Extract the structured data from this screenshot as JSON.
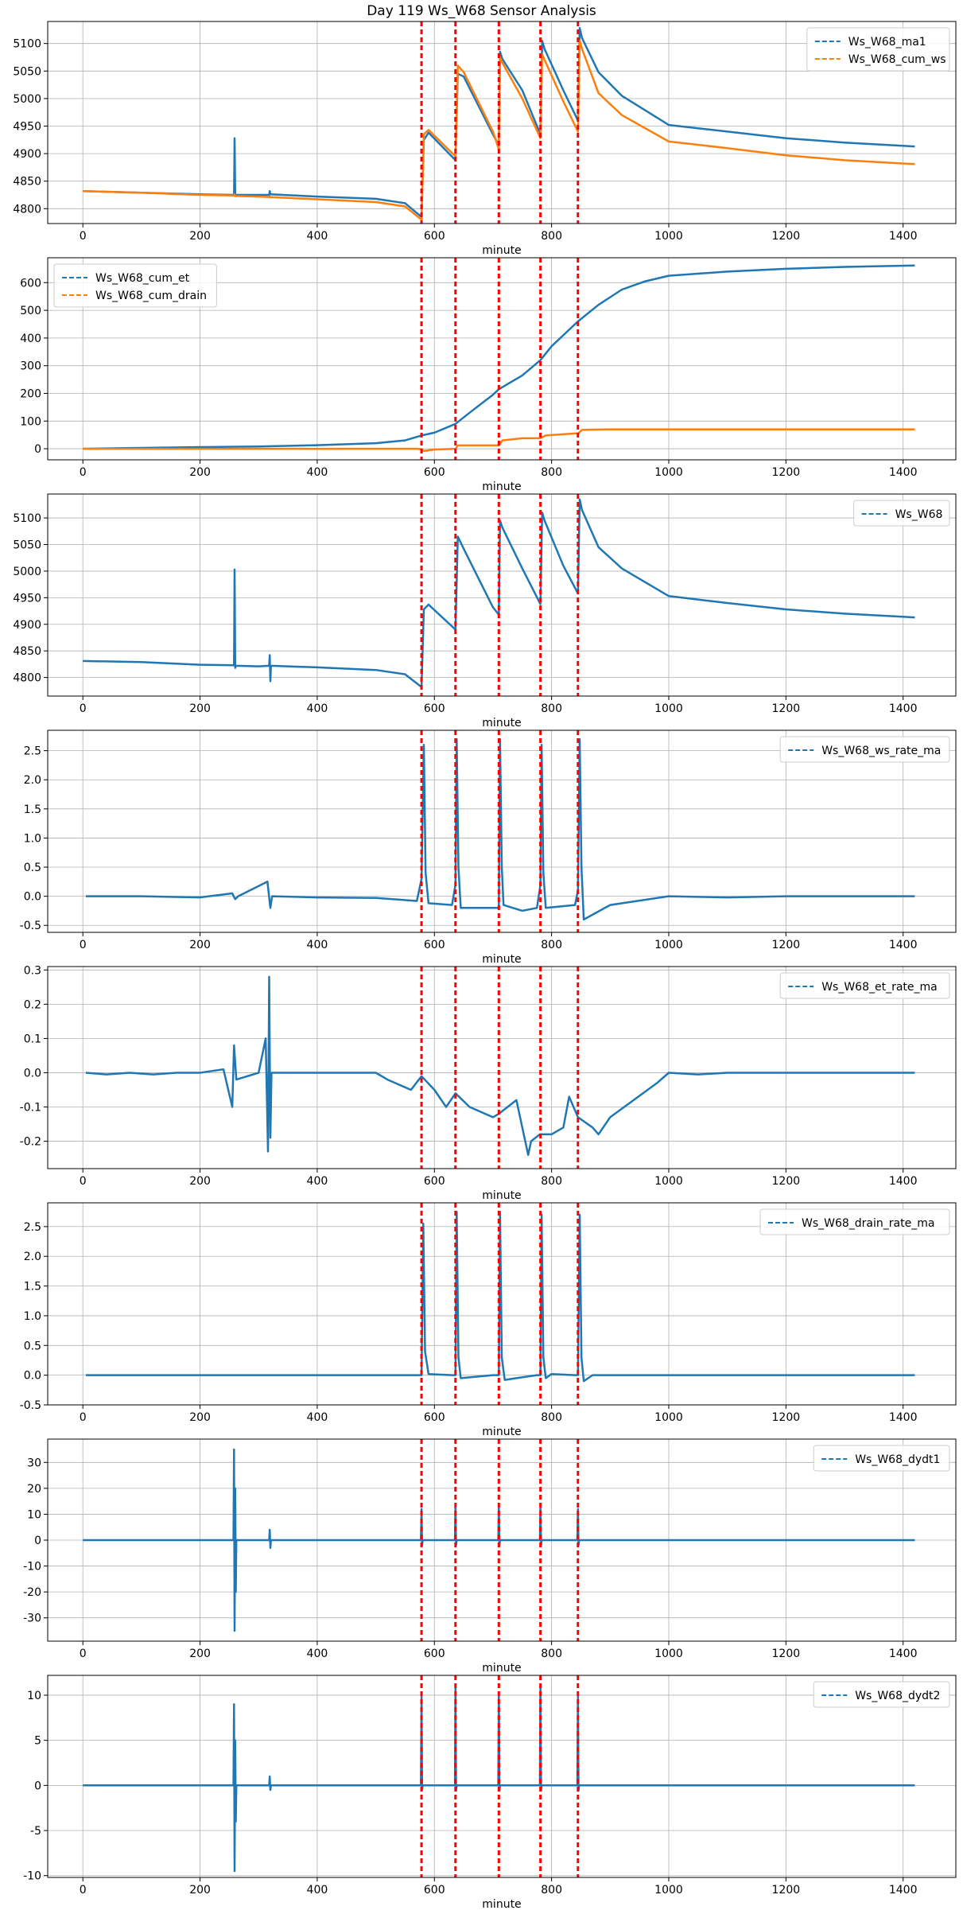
{
  "title": "Day 119 Ws_W68 Sensor Analysis",
  "colors": {
    "blue": "#1f77b4",
    "orange": "#ff7f0e",
    "event": "#ff0000",
    "grid": "#b0b0b0"
  },
  "event_lines": [
    578,
    636,
    710,
    781,
    845
  ],
  "chart_data": [
    {
      "type": "line",
      "title": "",
      "xlabel": "minute",
      "ylabel": "",
      "xlim": [
        -60,
        1490
      ],
      "ylim": [
        4773,
        5140
      ],
      "xticks": [
        0,
        200,
        400,
        600,
        800,
        1000,
        1200,
        1400
      ],
      "yticks": [
        4800,
        4850,
        4900,
        4950,
        5000,
        5050,
        5100
      ],
      "legend_position": "top-right",
      "grid": true,
      "series": [
        {
          "name": "Ws_W68_ma1",
          "color": "#1f77b4",
          "x": [
            0,
            100,
            200,
            258,
            259,
            260,
            261,
            300,
            318,
            319,
            320,
            400,
            500,
            550,
            578,
            582,
            590,
            636,
            640,
            650,
            700,
            710,
            712,
            716,
            750,
            781,
            784,
            788,
            820,
            845,
            848,
            852,
            880,
            920,
            1000,
            1100,
            1200,
            1300,
            1420
          ],
          "y": [
            4832,
            4829,
            4826,
            4825,
            4928,
            4823,
            4825,
            4825,
            4825,
            4832,
            4826,
            4822,
            4818,
            4810,
            4785,
            4925,
            4938,
            4888,
            5045,
            5040,
            4935,
            4915,
            5085,
            5072,
            5015,
            4935,
            5105,
            5090,
            5015,
            4960,
            5128,
            5110,
            5048,
            5005,
            4952,
            4940,
            4928,
            4920,
            4913
          ]
        },
        {
          "name": "Ws_W68_cum_ws",
          "color": "#ff7f0e",
          "x": [
            0,
            100,
            200,
            258,
            259,
            260,
            261,
            300,
            318,
            319,
            320,
            400,
            500,
            550,
            578,
            582,
            590,
            636,
            640,
            650,
            700,
            710,
            712,
            716,
            750,
            781,
            784,
            788,
            820,
            845,
            848,
            852,
            880,
            920,
            1000,
            1100,
            1200,
            1300,
            1420
          ],
          "y": [
            4832,
            4829,
            4825,
            4824,
            4826,
            4823,
            4823,
            4822,
            4821,
            4822,
            4821,
            4817,
            4812,
            4804,
            4780,
            4935,
            4943,
            4895,
            5060,
            5048,
            4940,
            4908,
            5075,
            5065,
            5000,
            4928,
            5080,
            5070,
            4995,
            4940,
            5105,
            5090,
            5010,
            4970,
            4922,
            4910,
            4897,
            4888,
            4881
          ]
        }
      ]
    },
    {
      "type": "line",
      "title": "",
      "xlabel": "minute",
      "ylabel": "",
      "xlim": [
        -60,
        1490
      ],
      "ylim": [
        -40,
        690
      ],
      "xticks": [
        0,
        200,
        400,
        600,
        800,
        1000,
        1200,
        1400
      ],
      "yticks": [
        0,
        100,
        200,
        300,
        400,
        500,
        600
      ],
      "legend_position": "top-left",
      "grid": true,
      "series": [
        {
          "name": "Ws_W68_cum_et",
          "color": "#1f77b4",
          "x": [
            0,
            100,
            200,
            300,
            400,
            500,
            550,
            578,
            600,
            636,
            660,
            700,
            710,
            750,
            781,
            800,
            845,
            880,
            920,
            960,
            1000,
            1100,
            1200,
            1300,
            1420
          ],
          "y": [
            0,
            3,
            6,
            8,
            13,
            20,
            30,
            48,
            58,
            90,
            130,
            195,
            215,
            265,
            320,
            370,
            460,
            520,
            575,
            605,
            625,
            640,
            650,
            657,
            662
          ]
        },
        {
          "name": "Ws_W68_cum_drain",
          "color": "#ff7f0e",
          "x": [
            0,
            100,
            200,
            300,
            400,
            500,
            570,
            578,
            582,
            600,
            636,
            640,
            700,
            710,
            716,
            750,
            781,
            790,
            840,
            845,
            852,
            900,
            1000,
            1200,
            1420
          ],
          "y": [
            0,
            0,
            0,
            0,
            0,
            0,
            0,
            -2,
            -8,
            -3,
            0,
            12,
            12,
            12,
            30,
            38,
            38,
            48,
            55,
            55,
            68,
            70,
            70,
            70,
            70
          ]
        }
      ]
    },
    {
      "type": "line",
      "title": "",
      "xlabel": "minute",
      "ylabel": "",
      "xlim": [
        -60,
        1490
      ],
      "ylim": [
        4765,
        5145
      ],
      "xticks": [
        0,
        200,
        400,
        600,
        800,
        1000,
        1200,
        1400
      ],
      "yticks": [
        4800,
        4850,
        4900,
        4950,
        5000,
        5050,
        5100
      ],
      "legend_position": "top-right",
      "grid": true,
      "series": [
        {
          "name": "Ws_W68",
          "color": "#1f77b4",
          "x": [
            0,
            100,
            200,
            258,
            259,
            260,
            261,
            300,
            318,
            319,
            320,
            321,
            400,
            500,
            550,
            578,
            582,
            590,
            636,
            640,
            650,
            700,
            710,
            712,
            716,
            750,
            781,
            784,
            788,
            820,
            845,
            848,
            852,
            880,
            920,
            1000,
            1100,
            1200,
            1300,
            1420
          ],
          "y": [
            4831,
            4829,
            4824,
            4823,
            5003,
            4818,
            4822,
            4821,
            4822,
            4842,
            4793,
            4822,
            4819,
            4814,
            4806,
            4782,
            4928,
            4937,
            4890,
            5065,
            5042,
            4932,
            4918,
            5095,
            5082,
            5005,
            4938,
            5110,
            5095,
            5010,
            4958,
            5135,
            5115,
            5045,
            5005,
            4953,
            4940,
            4928,
            4920,
            4913
          ]
        }
      ]
    },
    {
      "type": "line",
      "title": "",
      "xlabel": "minute",
      "ylabel": "",
      "xlim": [
        -60,
        1490
      ],
      "ylim": [
        -0.62,
        2.85
      ],
      "xticks": [
        0,
        200,
        400,
        600,
        800,
        1000,
        1200,
        1400
      ],
      "yticks": [
        -0.5,
        0.0,
        0.5,
        1.0,
        1.5,
        2.0,
        2.5
      ],
      "legend_position": "top-right",
      "grid": true,
      "series": [
        {
          "name": "Ws_W68_ws_rate_ma",
          "color": "#1f77b4",
          "x": [
            5,
            100,
            200,
            255,
            260,
            265,
            315,
            320,
            323,
            400,
            500,
            570,
            578,
            582,
            585,
            590,
            630,
            636,
            638,
            641,
            645,
            700,
            710,
            712,
            715,
            718,
            750,
            775,
            781,
            783,
            786,
            790,
            840,
            845,
            848,
            851,
            855,
            900,
            1000,
            1100,
            1200,
            1420
          ],
          "y": [
            0.0,
            0.0,
            -0.02,
            0.05,
            -0.05,
            0.0,
            0.25,
            -0.2,
            0.0,
            -0.02,
            -0.03,
            -0.08,
            0.3,
            2.6,
            0.4,
            -0.12,
            -0.15,
            0.2,
            2.7,
            0.5,
            -0.2,
            -0.2,
            -0.2,
            2.7,
            0.5,
            -0.15,
            -0.25,
            -0.2,
            0.2,
            2.6,
            0.4,
            -0.2,
            -0.15,
            0.1,
            2.7,
            0.5,
            -0.4,
            -0.15,
            0.0,
            -0.02,
            0.0,
            0.0
          ]
        }
      ]
    },
    {
      "type": "line",
      "title": "",
      "xlabel": "minute",
      "ylabel": "",
      "xlim": [
        -60,
        1490
      ],
      "ylim": [
        -0.28,
        0.31
      ],
      "xticks": [
        0,
        200,
        400,
        600,
        800,
        1000,
        1200,
        1400
      ],
      "yticks": [
        -0.2,
        -0.1,
        0.0,
        0.1,
        0.2,
        0.3
      ],
      "legend_position": "top-right",
      "grid": true,
      "series": [
        {
          "name": "Ws_W68_et_rate_ma",
          "color": "#1f77b4",
          "x": [
            5,
            40,
            80,
            120,
            160,
            200,
            240,
            255,
            258,
            262,
            300,
            312,
            316,
            318,
            320,
            322,
            330,
            400,
            500,
            520,
            560,
            578,
            600,
            620,
            636,
            660,
            700,
            710,
            740,
            760,
            765,
            780,
            800,
            820,
            830,
            845,
            870,
            880,
            900,
            940,
            980,
            1000,
            1050,
            1100,
            1200,
            1300,
            1420
          ],
          "y": [
            0.0,
            -0.005,
            0.0,
            -0.005,
            0.0,
            0.0,
            0.01,
            -0.1,
            0.08,
            -0.02,
            0.0,
            0.1,
            -0.23,
            0.28,
            -0.19,
            0.0,
            0.0,
            0.0,
            0.0,
            -0.02,
            -0.05,
            -0.01,
            -0.05,
            -0.1,
            -0.06,
            -0.1,
            -0.13,
            -0.12,
            -0.08,
            -0.24,
            -0.2,
            -0.18,
            -0.18,
            -0.16,
            -0.07,
            -0.13,
            -0.16,
            -0.18,
            -0.13,
            -0.08,
            -0.03,
            0.0,
            -0.005,
            0.0,
            0.0,
            0.0,
            0.0
          ]
        }
      ]
    },
    {
      "type": "line",
      "title": "",
      "xlabel": "minute",
      "ylabel": "",
      "xlim": [
        -60,
        1490
      ],
      "ylim": [
        -0.5,
        2.9
      ],
      "xticks": [
        0,
        200,
        400,
        600,
        800,
        1000,
        1200,
        1400
      ],
      "yticks": [
        -0.5,
        0.0,
        0.5,
        1.0,
        1.5,
        2.0,
        2.5
      ],
      "legend_position": "top-right",
      "grid": true,
      "series": [
        {
          "name": "Ws_W68_drain_rate_ma",
          "color": "#1f77b4",
          "x": [
            5,
            200,
            400,
            570,
            578,
            581,
            584,
            590,
            630,
            636,
            638,
            641,
            645,
            700,
            710,
            712,
            715,
            720,
            740,
            775,
            781,
            783,
            786,
            790,
            800,
            840,
            845,
            848,
            851,
            855,
            870,
            900,
            1000,
            1200,
            1420
          ],
          "y": [
            0.0,
            0.0,
            0.0,
            0.0,
            0.0,
            2.55,
            0.4,
            0.02,
            0.0,
            0.0,
            2.75,
            0.3,
            -0.05,
            0.0,
            0.0,
            2.75,
            0.3,
            -0.08,
            -0.05,
            0.0,
            0.0,
            2.7,
            0.3,
            -0.05,
            0.02,
            0.0,
            0.0,
            2.7,
            0.3,
            -0.1,
            0.0,
            0.0,
            0.0,
            0.0,
            0.0
          ]
        }
      ]
    },
    {
      "type": "line",
      "title": "",
      "xlabel": "minute",
      "ylabel": "",
      "xlim": [
        -60,
        1490
      ],
      "ylim": [
        -39,
        39
      ],
      "xticks": [
        0,
        200,
        400,
        600,
        800,
        1000,
        1200,
        1400
      ],
      "yticks": [
        -30,
        -20,
        -10,
        0,
        10,
        20,
        30
      ],
      "legend_position": "top-right",
      "grid": true,
      "series": [
        {
          "name": "Ws_W68_dydt1",
          "color": "#1f77b4",
          "x": [
            0,
            100,
            200,
            257,
            258,
            259,
            260,
            261,
            262,
            300,
            318,
            319,
            320,
            321,
            400,
            500,
            577,
            578,
            579,
            580,
            635,
            636,
            637,
            638,
            709,
            710,
            711,
            712,
            780,
            781,
            782,
            783,
            844,
            845,
            846,
            847,
            900,
            1000,
            1200,
            1420
          ],
          "y": [
            0,
            0,
            0,
            0,
            35,
            -35,
            20,
            -20,
            0,
            0,
            0,
            4,
            -3,
            0,
            0,
            0,
            0,
            12,
            -2,
            0,
            0,
            14,
            -2,
            0,
            0,
            13,
            -2,
            0,
            0,
            13,
            -2,
            0,
            0,
            12,
            -2,
            0,
            0,
            0,
            0,
            0
          ]
        }
      ]
    },
    {
      "type": "line",
      "title": "",
      "xlabel": "minute",
      "ylabel": "",
      "xlim": [
        -60,
        1490
      ],
      "ylim": [
        -10.2,
        12.2
      ],
      "xticks": [
        0,
        200,
        400,
        600,
        800,
        1000,
        1200,
        1400
      ],
      "yticks": [
        -10,
        -5,
        0,
        5,
        10
      ],
      "legend_position": "top-right",
      "grid": true,
      "series": [
        {
          "name": "Ws_W68_dydt2",
          "color": "#1f77b4",
          "x": [
            0,
            100,
            200,
            257,
            258,
            259,
            260,
            261,
            262,
            300,
            318,
            319,
            320,
            321,
            400,
            500,
            577,
            578,
            579,
            580,
            635,
            636,
            637,
            638,
            709,
            710,
            711,
            712,
            780,
            781,
            782,
            783,
            844,
            845,
            846,
            847,
            900,
            1000,
            1200,
            1420
          ],
          "y": [
            0,
            0,
            0,
            0,
            9,
            -9.5,
            5,
            -4,
            0,
            0,
            0,
            1,
            -0.5,
            0,
            0,
            0,
            0,
            10,
            -0.5,
            0,
            0,
            11,
            -0.6,
            0,
            0,
            10,
            -0.6,
            0,
            0,
            11,
            -0.6,
            0,
            0,
            10,
            -0.6,
            0,
            0,
            0,
            0,
            0
          ]
        }
      ]
    }
  ]
}
